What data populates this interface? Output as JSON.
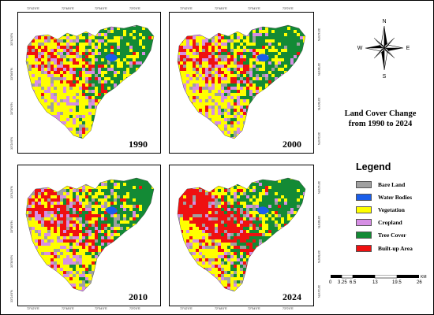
{
  "colors": {
    "bare_land": "#a0a0a0",
    "water_bodies": "#1a5eea",
    "vegetation": "#ffff00",
    "cropland": "#d68ee4",
    "tree_cover": "#138a35",
    "built_up": "#ef1010",
    "background": "#ffffff"
  },
  "title": "Land Cover Change from 1990 to 2024",
  "title_lines": [
    "Land Cover Change",
    "from 1990 to 2024"
  ],
  "compass": {
    "n": "N",
    "s": "S",
    "e": "E",
    "w": "W"
  },
  "legend": {
    "title": "Legend",
    "items": [
      {
        "label": "Bare Land",
        "color": "#a0a0a0"
      },
      {
        "label": "Water Bodies",
        "color": "#1a5eea"
      },
      {
        "label": "Vegetation",
        "color": "#ffff00"
      },
      {
        "label": "Cropland",
        "color": "#d68ee4"
      },
      {
        "label": "Tree Cover",
        "color": "#138a35"
      },
      {
        "label": "Built-up Area",
        "color": "#ef1010"
      }
    ]
  },
  "scale": {
    "labels": [
      "0",
      "3.25",
      "6.5",
      "13",
      "19.5",
      "26"
    ],
    "unit": "KM"
  },
  "lon_ticks": [
    "72°42'0\"E",
    "72°48'0\"E",
    "72°54'0\"E",
    "73°0'0\"E"
  ],
  "lat_ticks": [
    "33°42'0\"N",
    "33°36'0\"N",
    "33°30'0\"N",
    "33°24'0\"N"
  ],
  "maps": [
    {
      "year": "1990",
      "built": 0.12,
      "cropland": 0.18
    },
    {
      "year": "2000",
      "built": 0.16,
      "cropland": 0.2
    },
    {
      "year": "2010",
      "built": 0.22,
      "cropland": 0.17
    },
    {
      "year": "2024",
      "built": 0.32,
      "cropland": 0.12
    }
  ]
}
